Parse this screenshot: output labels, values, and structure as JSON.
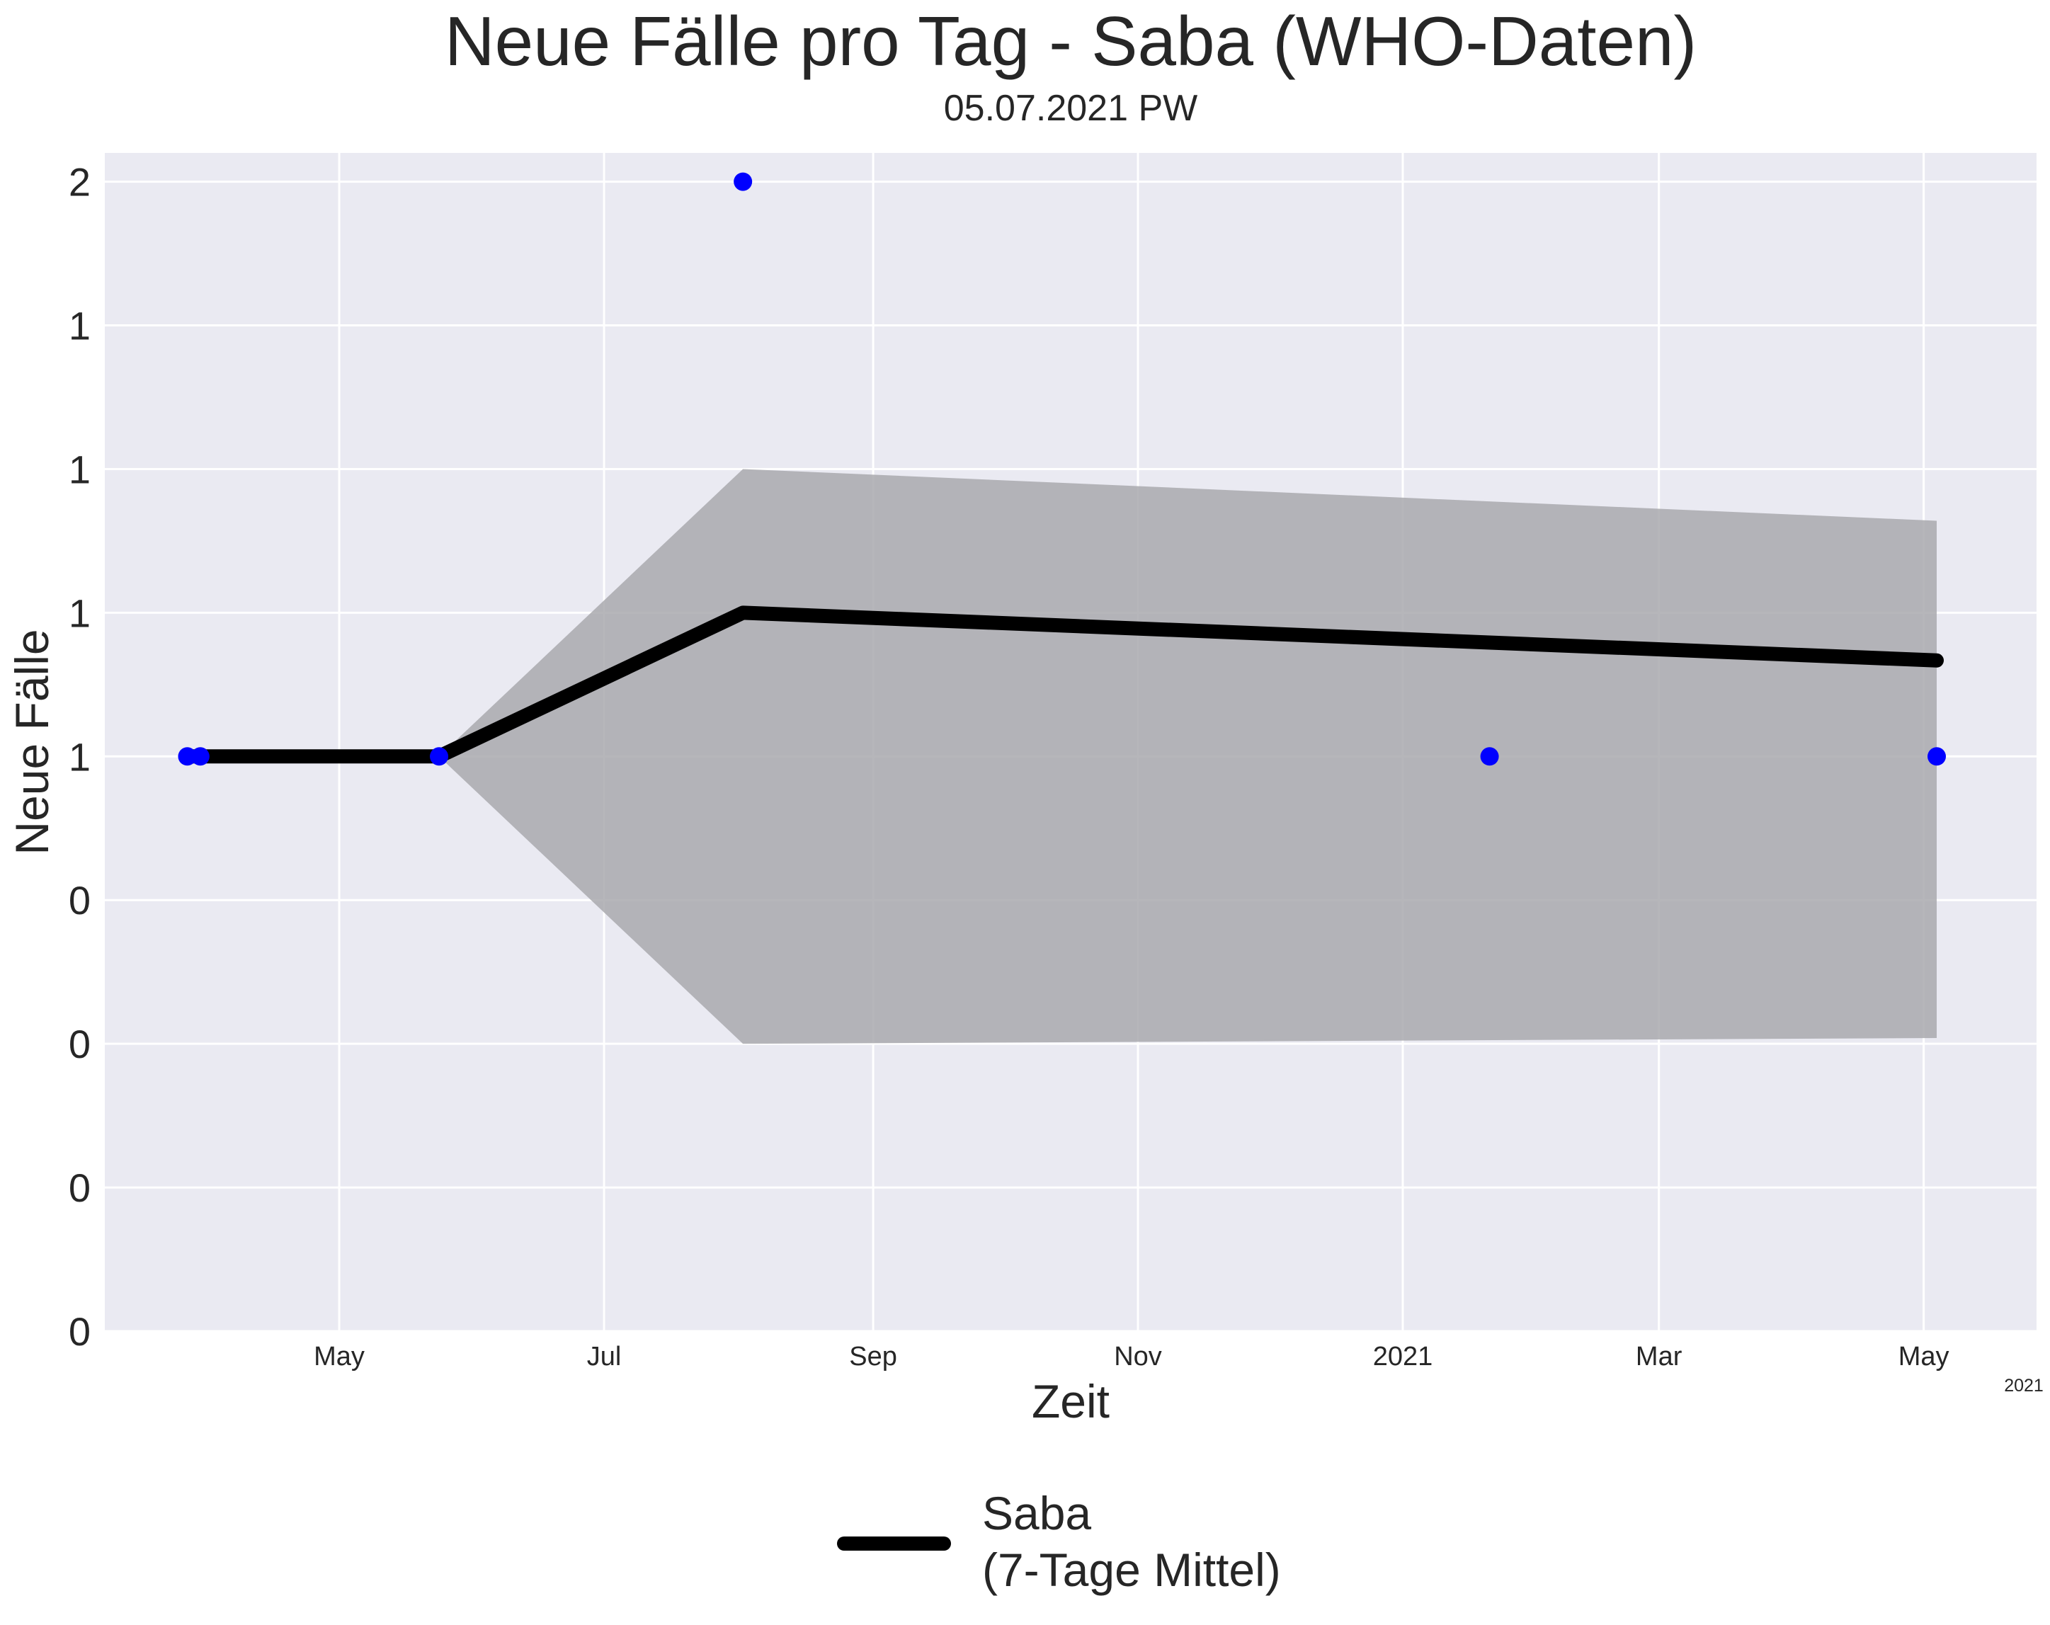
{
  "chart_data": {
    "type": "line",
    "title": "Neue Fälle pro Tag - Saba (WHO-Daten)",
    "subtitle": "05.07.2021 PW",
    "xlabel": "Zeit",
    "ylabel": "Neue Fälle",
    "x_offset_label": "2021",
    "xlim": [
      "2020-03-08",
      "2021-05-27"
    ],
    "ylim": [
      0,
      2.05
    ],
    "y_ticks": [
      {
        "value": 0.0,
        "label": "0"
      },
      {
        "value": 0.25,
        "label": "0"
      },
      {
        "value": 0.5,
        "label": "0"
      },
      {
        "value": 0.75,
        "label": "0"
      },
      {
        "value": 1.0,
        "label": "1"
      },
      {
        "value": 1.25,
        "label": "1"
      },
      {
        "value": 1.5,
        "label": "1"
      },
      {
        "value": 1.75,
        "label": "1"
      },
      {
        "value": 2.0,
        "label": "2"
      }
    ],
    "x_ticks": [
      {
        "date": "2020-05-01",
        "label": "May"
      },
      {
        "date": "2020-07-01",
        "label": "Jul"
      },
      {
        "date": "2020-09-01",
        "label": "Sep"
      },
      {
        "date": "2020-11-01",
        "label": "Nov"
      },
      {
        "date": "2021-01-01",
        "label": "2021"
      },
      {
        "date": "2021-03-01",
        "label": "Mar"
      },
      {
        "date": "2021-05-01",
        "label": "May"
      }
    ],
    "grid": true,
    "legend_position": "bottom-center",
    "series": [
      {
        "name": "Saba\n(7-Tage Mittel)",
        "kind": "line",
        "color": "#000000",
        "points": [
          {
            "x": "2020-03-27",
            "y": 1.0
          },
          {
            "x": "2020-03-30",
            "y": 1.0
          },
          {
            "x": "2020-05-24",
            "y": 1.0
          },
          {
            "x": "2020-08-02",
            "y": 1.25
          },
          {
            "x": "2021-05-04",
            "y": 1.167
          }
        ]
      },
      {
        "kind": "band",
        "color": "#a9a9ae",
        "upper": [
          {
            "x": "2020-05-24",
            "y": 1.0
          },
          {
            "x": "2020-08-02",
            "y": 1.5
          },
          {
            "x": "2021-05-04",
            "y": 1.41
          }
        ],
        "lower": [
          {
            "x": "2020-05-24",
            "y": 1.0
          },
          {
            "x": "2020-08-02",
            "y": 0.5
          },
          {
            "x": "2021-05-04",
            "y": 0.51
          }
        ]
      },
      {
        "kind": "scatter",
        "color": "#0000ff",
        "points": [
          {
            "x": "2020-03-27",
            "y": 1
          },
          {
            "x": "2020-03-30",
            "y": 1
          },
          {
            "x": "2020-05-24",
            "y": 1
          },
          {
            "x": "2020-08-02",
            "y": 2
          },
          {
            "x": "2021-01-21",
            "y": 1
          },
          {
            "x": "2021-05-04",
            "y": 1
          }
        ]
      }
    ]
  }
}
